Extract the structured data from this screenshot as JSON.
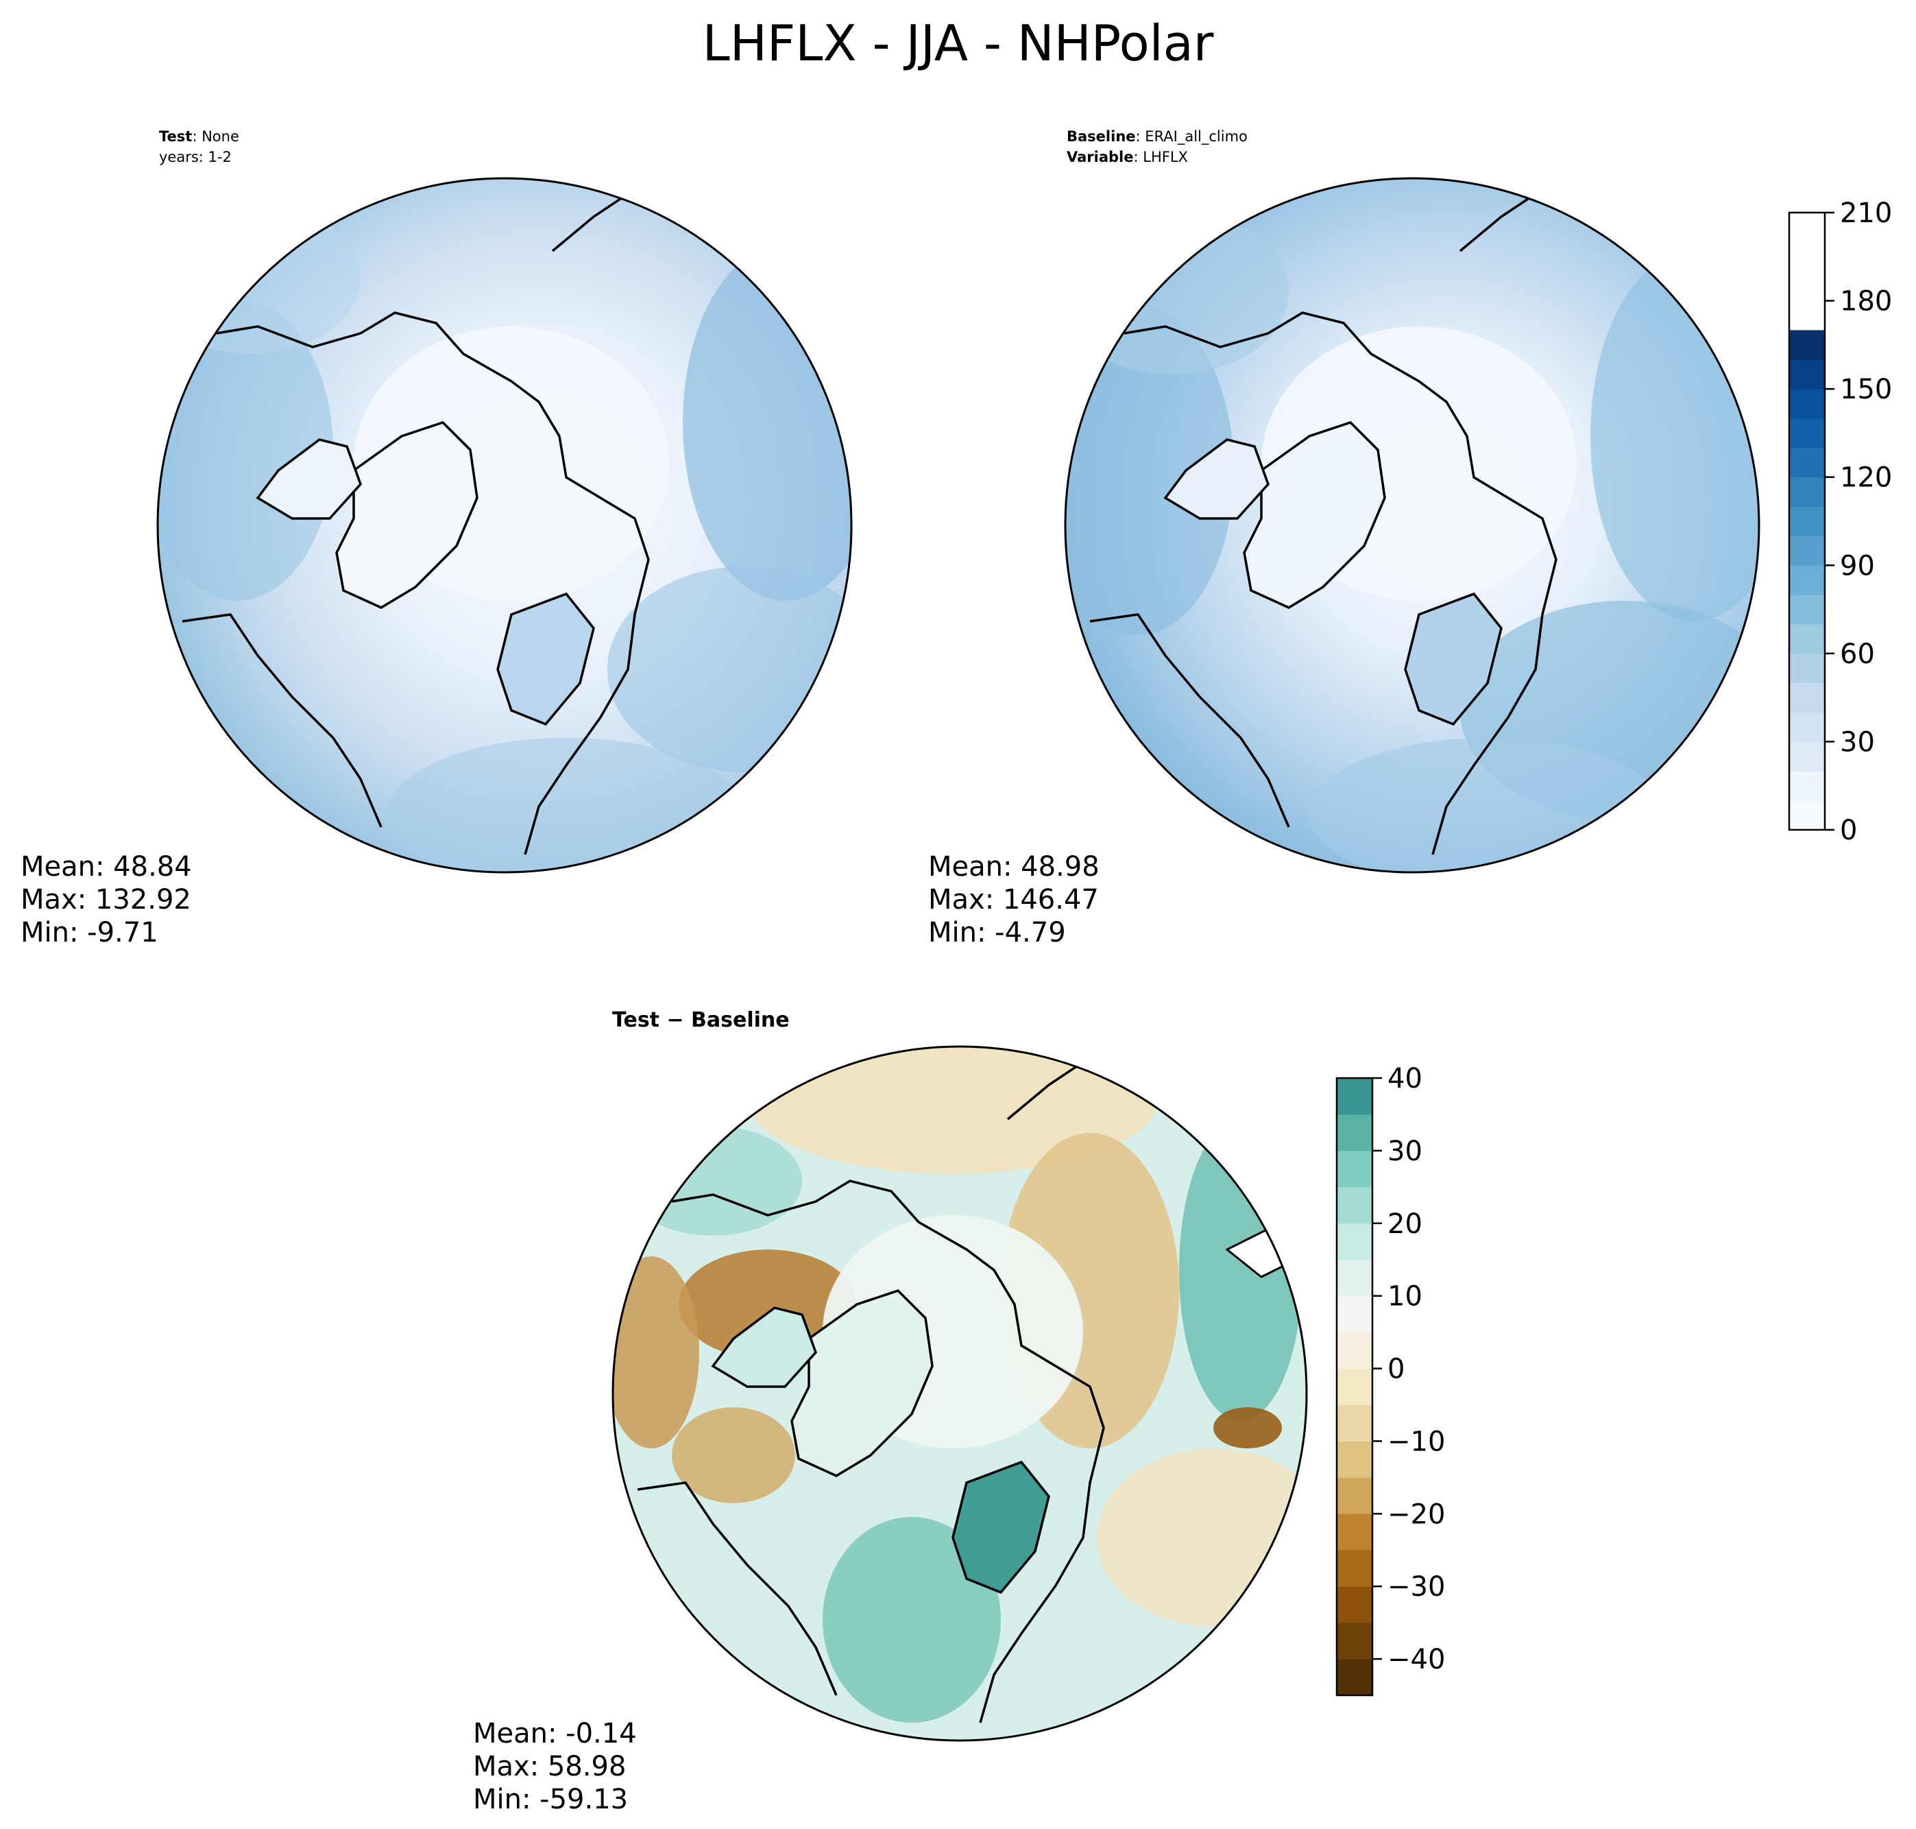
{
  "figure": {
    "title": "LHFLX - JJA - NHPolar"
  },
  "test_panel": {
    "label_key": "Test",
    "label_sep": ": ",
    "label_value": "None",
    "years_line": "years: 1-2",
    "stats": {
      "mean": "Mean: 48.84",
      "max": "Max: 132.92",
      "min": "Min: -9.71"
    }
  },
  "baseline_panel": {
    "baseline_key": "Baseline",
    "baseline_sep": ": ",
    "baseline_value": "ERAI_all_climo",
    "variable_key": "Variable",
    "variable_sep": ": ",
    "variable_value": "LHFLX",
    "stats": {
      "mean": "Mean: 48.98",
      "max": "Max: 146.47",
      "min": "Min: -4.79"
    }
  },
  "diff_panel": {
    "title": "Test − Baseline",
    "stats": {
      "mean": "Mean: -0.14",
      "max": "Max: 58.98",
      "min": "Min: -59.13"
    }
  },
  "chart_data": [
    {
      "type": "colorbar",
      "orientation": "vertical",
      "applies_to": [
        "test",
        "baseline"
      ],
      "colormap": "Blues",
      "vmin": 0,
      "vmax": 210,
      "step": 10,
      "tick_labels": [
        "0",
        "30",
        "60",
        "90",
        "120",
        "150",
        "180",
        "210"
      ],
      "colors": [
        "#f7fbff",
        "#ebf3fb",
        "#deebf7",
        "#d2e3f3",
        "#c6dbef",
        "#b2d2e8",
        "#9ecae1",
        "#84bcdb",
        "#6baed6",
        "#57a0ce",
        "#4292c6",
        "#3282be",
        "#2171b5",
        "#1361a9",
        "#08519c",
        "#08408a",
        "#08306b"
      ]
    },
    {
      "type": "colorbar",
      "orientation": "vertical",
      "applies_to": [
        "difference"
      ],
      "colormap": "BrBG",
      "vmin": -45,
      "vmax": 40,
      "step": 5,
      "tick_labels": [
        "40",
        "30",
        "20",
        "10",
        "0",
        "−10",
        "−20",
        "−30",
        "−40"
      ],
      "colors": [
        "#543005",
        "#70420a",
        "#8c510a",
        "#a86a19",
        "#bf812d",
        "#d1a55c",
        "#dfc27d",
        "#ebd8a9",
        "#f6e8c3",
        "#f5efdf",
        "#f5f5f5",
        "#e4f1ef",
        "#c7eae5",
        "#a4dbd2",
        "#80cdc1",
        "#5bb3a8",
        "#35978f",
        "#1d7d74",
        "#01665e",
        "#014d42",
        "#003c30"
      ]
    }
  ],
  "map_colors": {
    "ice": "#eef5fc",
    "land_light": "#e3eef9",
    "ocean_mid": "#c6dbef",
    "ocean_deep": "#8fbfe0",
    "diff_neutral": "#e8f3f1",
    "diff_brown": "#c28a3d",
    "diff_teal": "#7fcbbf",
    "coast": "#000000"
  }
}
